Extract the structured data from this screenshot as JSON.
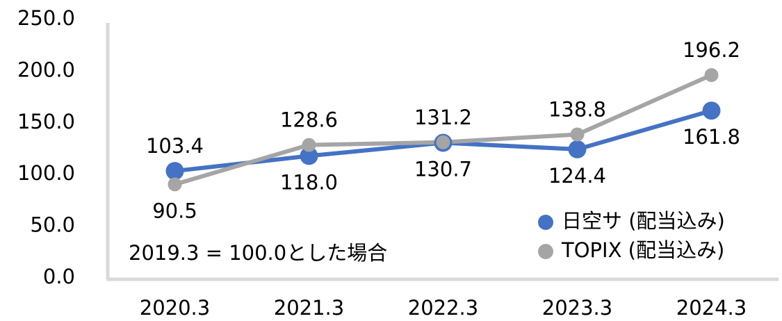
{
  "chart_data": {
    "type": "line",
    "categories": [
      "2020.3",
      "2021.3",
      "2022.3",
      "2023.3",
      "2024.3"
    ],
    "series": [
      {
        "name": "日空サ (配当込み)",
        "color": "#4472c4",
        "values": [
          103.4,
          118.0,
          130.7,
          124.4,
          161.8
        ],
        "value_labels": [
          "103.4",
          "118.0",
          "130.7",
          "124.4",
          "161.8"
        ]
      },
      {
        "name": "TOPIX (配当込み)",
        "color": "#a5a5a5",
        "values": [
          90.5,
          128.6,
          131.2,
          138.8,
          196.2
        ],
        "value_labels": [
          "90.5",
          "128.6",
          "131.2",
          "138.8",
          "196.2"
        ]
      }
    ],
    "ylim": [
      0,
      250
    ],
    "yticks": [
      {
        "value": 0,
        "label": "0.0"
      },
      {
        "value": 50,
        "label": "50.0"
      },
      {
        "value": 100,
        "label": "100.0"
      },
      {
        "value": 150,
        "label": "150.0"
      },
      {
        "value": 200,
        "label": "200.0"
      },
      {
        "value": 250,
        "label": "250.0"
      }
    ],
    "annotation": "2019.3 = 100.0とした場合",
    "grid": false,
    "legend": "lower right"
  }
}
